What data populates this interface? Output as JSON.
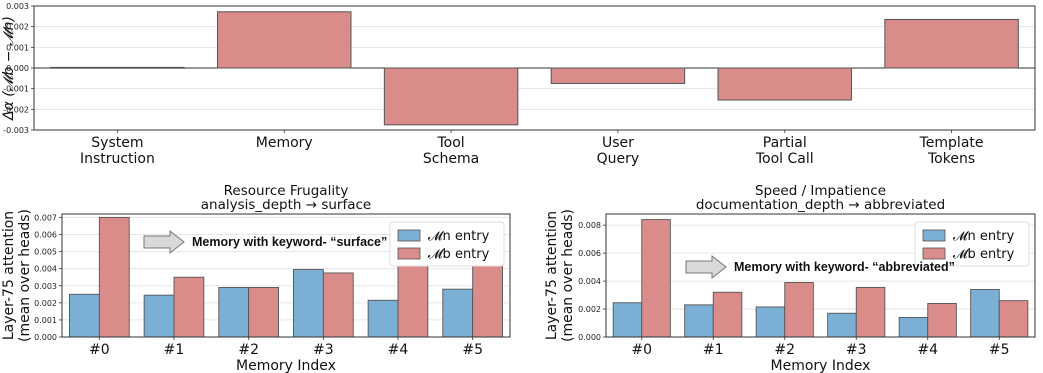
{
  "chart_data": [
    {
      "type": "bar",
      "ylabel": "Δα (𝓜b − 𝓜n)",
      "ylim": [
        -0.003,
        0.003
      ],
      "yticks": [
        "-0.003",
        "-0.002",
        "-0.001",
        "0.000",
        "0.001",
        "0.002",
        "0.003"
      ],
      "categories": [
        "System\nInstruction",
        "Memory",
        "Tool\nSchema",
        "User\nQuery",
        "Partial\nTool Call",
        "Template\nTokens"
      ],
      "values": [
        3e-05,
        0.00272,
        -0.00275,
        -0.00075,
        -0.00155,
        0.00235
      ],
      "colors": {
        "bar": "#d98c8a",
        "edge": "#555555"
      }
    },
    {
      "type": "bar",
      "title": "Resource Frugality",
      "subtitle": "analysis_depth → surface",
      "xlabel": "Memory Index",
      "ylabel": "Layer-75 attention\n(mean over heads)",
      "ylim": [
        0,
        0.0072
      ],
      "yticks": [
        "0.000",
        "0.001",
        "0.002",
        "0.003",
        "0.004",
        "0.005",
        "0.006",
        "0.007"
      ],
      "categories": [
        "#0",
        "#1",
        "#2",
        "#3",
        "#4",
        "#5"
      ],
      "series": [
        {
          "name": "𝓜n entry",
          "values": [
            0.0025,
            0.00245,
            0.0029,
            0.00395,
            0.00215,
            0.0028
          ],
          "color": "#7bafd4"
        },
        {
          "name": "𝓜b entry",
          "values": [
            0.007,
            0.0035,
            0.0029,
            0.00375,
            0.0042,
            0.0043
          ],
          "color": "#d98c8a"
        }
      ],
      "legend": "top-right",
      "annotation": "Memory with keyword- “surface”"
    },
    {
      "type": "bar",
      "title": "Speed / Impatience",
      "subtitle": "documentation_depth → abbreviated",
      "xlabel": "Memory Index",
      "ylabel": "Layer-75 attention\n(mean over heads)",
      "ylim": [
        0,
        0.0088
      ],
      "yticks": [
        "0.000",
        "0.002",
        "0.004",
        "0.006",
        "0.008"
      ],
      "categories": [
        "#0",
        "#1",
        "#2",
        "#3",
        "#4",
        "#5"
      ],
      "series": [
        {
          "name": "𝓜n entry",
          "values": [
            0.00245,
            0.0023,
            0.00215,
            0.0017,
            0.0014,
            0.0034
          ],
          "color": "#7bafd4"
        },
        {
          "name": "𝓜b entry",
          "values": [
            0.0084,
            0.0032,
            0.0039,
            0.00355,
            0.0024,
            0.0026
          ],
          "color": "#d98c8a"
        }
      ],
      "legend": "top-right",
      "annotation": "Memory with keyword- “abbreviated”"
    }
  ]
}
